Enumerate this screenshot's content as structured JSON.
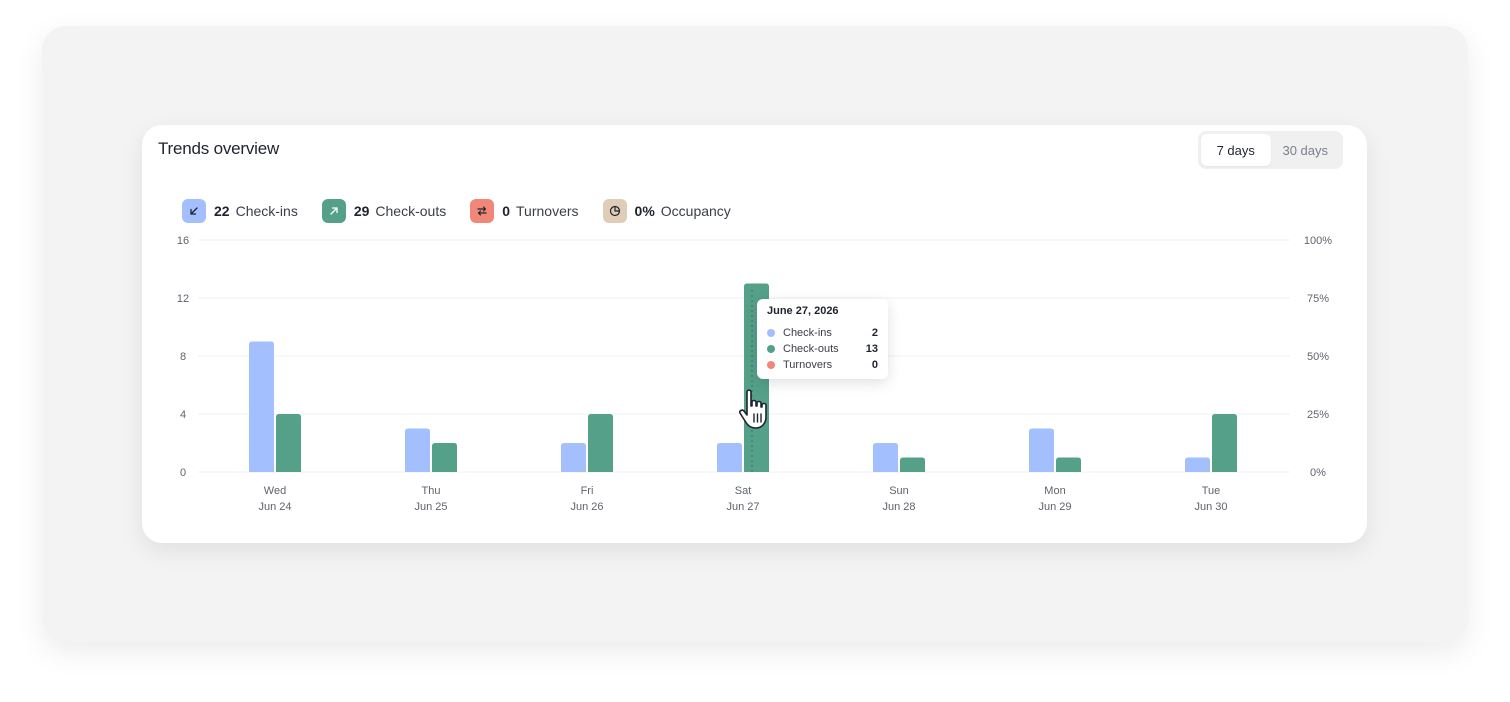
{
  "card": {
    "title": "Trends overview",
    "range_options": [
      "7 days",
      "30 days"
    ],
    "range_selected": "7 days"
  },
  "stats": [
    {
      "value": "22",
      "label": "Check-ins",
      "color": "#a3bffd",
      "icon": "arrow-down-left-icon"
    },
    {
      "value": "29",
      "label": "Check-outs",
      "color": "#55a088",
      "icon": "arrow-up-right-icon"
    },
    {
      "value": "0",
      "label": "Turnovers",
      "color": "#f08778",
      "icon": "swap-icon"
    },
    {
      "value": "0%",
      "label": "Occupancy",
      "color": "#dfcdb8",
      "icon": "pie-icon"
    }
  ],
  "tooltip": {
    "date": "June 27, 2026",
    "rows": [
      {
        "name": "Check-ins",
        "value": "2",
        "color": "#a3bffd"
      },
      {
        "name": "Check-outs",
        "value": "13",
        "color": "#55a088"
      },
      {
        "name": "Turnovers",
        "value": "0",
        "color": "#f08778"
      }
    ]
  },
  "chart_data": {
    "type": "bar",
    "categories": [
      [
        "Wed",
        "Jun 24"
      ],
      [
        "Thu",
        "Jun 25"
      ],
      [
        "Fri",
        "Jun 26"
      ],
      [
        "Sat",
        "Jun 27"
      ],
      [
        "Sun",
        "Jun 28"
      ],
      [
        "Mon",
        "Jun 29"
      ],
      [
        "Tue",
        "Jun 30"
      ]
    ],
    "series": [
      {
        "name": "Check-ins",
        "color": "#a3bffd",
        "values": [
          9,
          3,
          2,
          2,
          2,
          3,
          1
        ]
      },
      {
        "name": "Check-outs",
        "color": "#55a088",
        "values": [
          4,
          2,
          4,
          13,
          1,
          1,
          4
        ]
      },
      {
        "name": "Turnovers",
        "color": "#f08778",
        "values": [
          0,
          0,
          0,
          0,
          0,
          0,
          0
        ]
      }
    ],
    "ylim": [
      0,
      16
    ],
    "yticks": [
      "0",
      "4",
      "8",
      "12",
      "16"
    ],
    "y2ticks": [
      "0%",
      "25%",
      "50%",
      "75%",
      "100%"
    ],
    "grid": true
  }
}
